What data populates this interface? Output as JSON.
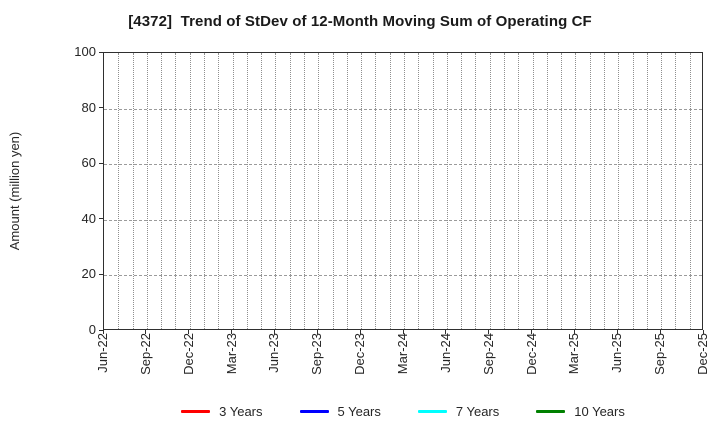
{
  "title": "[4372]  Trend of StDev of 12-Month Moving Sum of Operating CF",
  "chart_data": {
    "type": "line",
    "title": "[4372]  Trend of StDev of 12-Month Moving Sum of Operating CF",
    "xlabel": "",
    "ylabel": "Amount (million yen)",
    "ylim": [
      0,
      100
    ],
    "yticks": [
      0,
      20,
      40,
      60,
      80,
      100
    ],
    "x_tick_labels": [
      "Jun-22",
      "Sep-22",
      "Dec-22",
      "Mar-23",
      "Jun-23",
      "Sep-23",
      "Dec-23",
      "Mar-24",
      "Jun-24",
      "Sep-24",
      "Dec-24",
      "Mar-25",
      "Jun-25",
      "Sep-25",
      "Dec-25"
    ],
    "months_per_tick": 3,
    "grid": true,
    "grid_style": "dotted",
    "legend_position": "bottom",
    "plot_is_empty": true,
    "series": [
      {
        "name": "3 Years",
        "color": "#ff0000",
        "values": []
      },
      {
        "name": "5 Years",
        "color": "#0000ff",
        "values": []
      },
      {
        "name": "7 Years",
        "color": "#00ffff",
        "values": []
      },
      {
        "name": "10 Years",
        "color": "#008000",
        "values": []
      }
    ]
  },
  "colors": {
    "background": "#ffffff",
    "axis": "#2f2f2f",
    "grid": "#999999",
    "text": "#262626"
  }
}
